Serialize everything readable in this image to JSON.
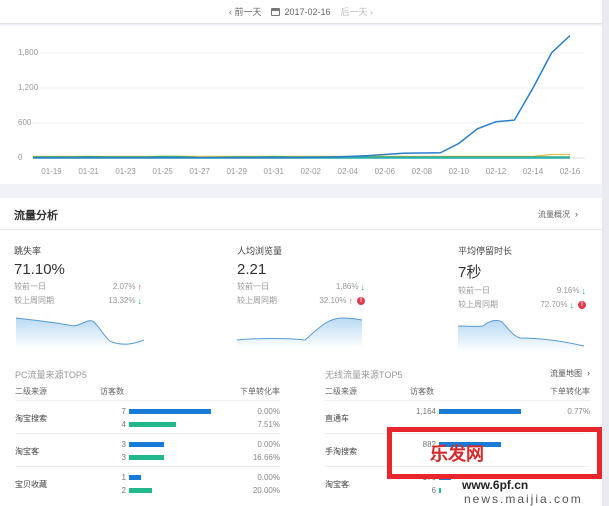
{
  "topbar": {
    "prev_label": "前一天",
    "date": "2017-02-16",
    "next_label": "后一天",
    "prev_icon": "chevron-left-icon",
    "next_icon": "chevron-right-icon",
    "calendar_icon": "calendar-icon"
  },
  "chart_data": {
    "type": "line",
    "title": "",
    "xlabel": "",
    "ylabel": "",
    "ylim": [
      0,
      2000
    ],
    "y_ticks": [
      "0",
      "600",
      "1,200",
      "1,800"
    ],
    "x": [
      "01-18",
      "01-19",
      "01-20",
      "01-21",
      "01-22",
      "01-23",
      "01-24",
      "01-25",
      "01-26",
      "01-27",
      "01-28",
      "01-29",
      "01-30",
      "01-31",
      "02-01",
      "02-02",
      "02-03",
      "02-04",
      "02-05",
      "02-06",
      "02-07",
      "02-08",
      "02-09",
      "02-10",
      "02-11",
      "02-12",
      "02-13",
      "02-14",
      "02-15",
      "02-16"
    ],
    "x_tick_labels": [
      "01-19",
      "01-21",
      "01-23",
      "01-25",
      "01-27",
      "01-29",
      "01-31",
      "02-02",
      "02-04",
      "02-06",
      "02-08",
      "02-10",
      "02-12",
      "02-14",
      "02-16"
    ],
    "series": [
      {
        "name": "blue",
        "color": "#2a7fc9",
        "values": [
          5,
          5,
          5,
          5,
          5,
          5,
          5,
          5,
          5,
          5,
          5,
          5,
          5,
          5,
          5,
          10,
          15,
          25,
          40,
          60,
          80,
          85,
          90,
          250,
          500,
          620,
          650,
          1200,
          1800,
          2100
        ]
      },
      {
        "name": "yellow",
        "color": "#e8c14a",
        "values": [
          30,
          30,
          30,
          30,
          30,
          30,
          30,
          30,
          30,
          30,
          30,
          30,
          30,
          30,
          30,
          30,
          30,
          30,
          30,
          30,
          30,
          30,
          30,
          30,
          30,
          30,
          30,
          30,
          60,
          60
        ]
      },
      {
        "name": "green",
        "color": "#3aa57a",
        "values": [
          20,
          22,
          20,
          25,
          20,
          18,
          20,
          30,
          25,
          10,
          15,
          20,
          20,
          25,
          20,
          20,
          20,
          20,
          20,
          20,
          20,
          20,
          20,
          20,
          20,
          20,
          20,
          20,
          20,
          20
        ]
      },
      {
        "name": "teal",
        "color": "#19b0b0",
        "values": [
          0,
          0,
          0,
          0,
          0,
          0,
          0,
          0,
          0,
          0,
          0,
          0,
          0,
          0,
          0,
          0,
          0,
          0,
          0,
          0,
          0,
          0,
          0,
          0,
          0,
          0,
          0,
          0,
          0,
          0
        ]
      }
    ]
  },
  "panel": {
    "title": "流量分析",
    "link": "流量概况"
  },
  "metrics": [
    {
      "title": "跳失率",
      "value": "71.10%",
      "rows": [
        {
          "label": "较前一日",
          "value": "2.07%",
          "dir": "up"
        },
        {
          "label": "较上周同期",
          "value": "13.32%",
          "dir": "down"
        }
      ]
    },
    {
      "title": "人均浏览量",
      "value": "2.21",
      "rows": [
        {
          "label": "较前一日",
          "value": "1.86%",
          "dir": "down"
        },
        {
          "label": "较上周同期",
          "value": "32.10%",
          "dir": "up",
          "warn": true
        }
      ]
    },
    {
      "title": "平均停留时长",
      "value": "7秒",
      "rows": [
        {
          "label": "较前一日",
          "value": "9.16%",
          "dir": "down"
        },
        {
          "label": "较上周同期",
          "value": "72.70%",
          "dir": "down",
          "warn": true
        }
      ]
    }
  ],
  "pc_table": {
    "title": "PC流量来源TOP5",
    "headers": [
      "二级来源",
      "访客数",
      "下单转化率"
    ],
    "rows": [
      {
        "source": "淘宝搜索",
        "lines": [
          {
            "num": "7",
            "rate": "0.00%"
          },
          {
            "num": "4",
            "rate": "7.51%"
          }
        ]
      },
      {
        "source": "淘宝客",
        "lines": [
          {
            "num": "3",
            "rate": "0.00%"
          },
          {
            "num": "3",
            "rate": "16.66%"
          }
        ]
      },
      {
        "source": "宝贝收藏",
        "lines": [
          {
            "num": "1",
            "rate": "0.00%"
          },
          {
            "num": "2",
            "rate": "20.00%"
          }
        ]
      }
    ]
  },
  "mobile_table": {
    "title": "无线流量来源TOP5",
    "link": "流量地图",
    "headers": [
      "二级来源",
      "访客数",
      "下单转化率"
    ],
    "rows": [
      {
        "source": "直通车",
        "lines": [
          {
            "num": "1,164",
            "rate": "0.77%"
          }
        ]
      },
      {
        "source": "手淘搜索",
        "lines": [
          {
            "num": "882",
            "rate": ""
          },
          {
            "num": "1",
            "rate": ""
          }
        ]
      },
      {
        "source": "淘宝客",
        "lines": [
          {
            "num": "176",
            "rate": ""
          },
          {
            "num": "6",
            "rate": ""
          }
        ]
      }
    ]
  },
  "watermark": {
    "text": "乐发网",
    "url1": "www.6pf.cn",
    "url2": "news.maijia.com"
  }
}
